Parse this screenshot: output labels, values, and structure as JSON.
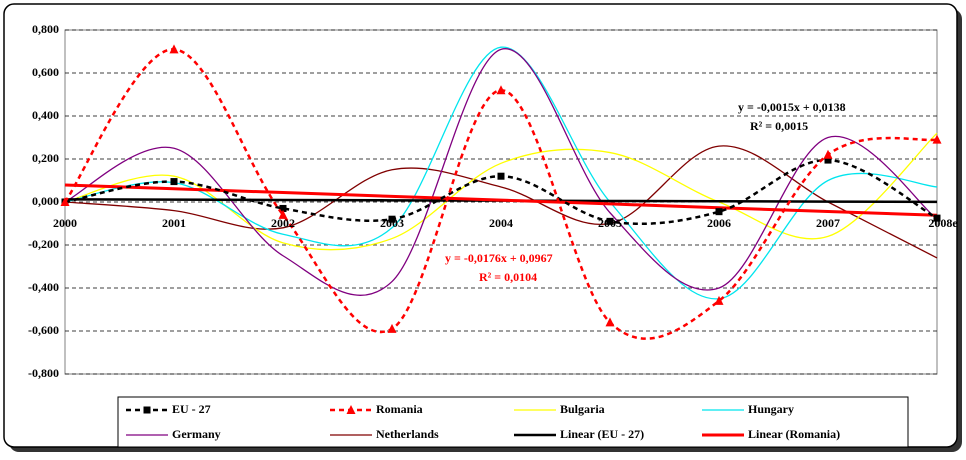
{
  "chart_data": {
    "type": "line",
    "categories": [
      "2000",
      "2001",
      "2002",
      "2003",
      "2004",
      "2005",
      "2006",
      "2007",
      "2008e"
    ],
    "ylim": [
      -0.8,
      0.8
    ],
    "yticks": [
      {
        "value": -0.8,
        "label": "-0,800"
      },
      {
        "value": -0.6,
        "label": "-0,600"
      },
      {
        "value": -0.4,
        "label": "-0,400"
      },
      {
        "value": -0.2,
        "label": "-0,200"
      },
      {
        "value": 0,
        "label": "0,000"
      },
      {
        "value": 0.2,
        "label": "0,200"
      },
      {
        "value": 0.4,
        "label": "0,400"
      },
      {
        "value": 0.6,
        "label": "0,600"
      },
      {
        "value": 0.8,
        "label": "0,800"
      }
    ],
    "grid": true,
    "smooth": true,
    "series": [
      {
        "name": "EU - 27",
        "color": "#000000",
        "dash": true,
        "marker": "square",
        "width": 2.5,
        "values": [
          0,
          0.095,
          -0.03,
          -0.08,
          0.12,
          -0.09,
          -0.045,
          0.195,
          -0.075
        ]
      },
      {
        "name": "Romania",
        "color": "#ff0000",
        "dash": true,
        "marker": "triangle",
        "width": 2.5,
        "values": [
          0,
          0.71,
          -0.06,
          -0.59,
          0.52,
          -0.56,
          -0.46,
          0.22,
          0.29
        ]
      },
      {
        "name": "Bulgaria",
        "color": "#ffff00",
        "width": 1.3,
        "values": [
          0,
          0.12,
          -0.19,
          -0.17,
          0.18,
          0.23,
          0.0,
          -0.16,
          0.32
        ]
      },
      {
        "name": "Hungary",
        "color": "#00e5ee",
        "width": 1.3,
        "values": [
          0,
          0.09,
          -0.15,
          -0.12,
          0.72,
          0.0,
          -0.45,
          0.1,
          0.07
        ]
      },
      {
        "name": "Germany",
        "color": "#800080",
        "width": 1.3,
        "values": [
          0,
          0.25,
          -0.25,
          -0.37,
          0.71,
          -0.05,
          -0.4,
          0.3,
          -0.08
        ]
      },
      {
        "name": "Netherlands",
        "color": "#800000",
        "width": 1.3,
        "values": [
          0,
          -0.04,
          -0.12,
          0.15,
          0.07,
          -0.1,
          0.26,
          0.0,
          -0.26
        ]
      },
      {
        "name": "Linear (EU - 27)",
        "color": "#000000",
        "width": 2.5,
        "straight": true,
        "values": [
          0.0123,
          0.0108,
          0.0093,
          0.0078,
          0.0063,
          0.0048,
          0.0033,
          0.0018,
          0.0003
        ]
      },
      {
        "name": "Linear (Romania)",
        "color": "#ff0000",
        "width": 3,
        "straight": true,
        "values": [
          0.0791,
          0.0615,
          0.0439,
          0.0263,
          0.0087,
          -0.0089,
          -0.0265,
          -0.0441,
          -0.0617
        ]
      }
    ],
    "annotations": [
      {
        "text": "y = -0,0015x + 0,0138",
        "color": "#000000"
      },
      {
        "text": "R² = 0,0015",
        "color": "#000000"
      },
      {
        "text": "y = -0,0176x + 0,0967",
        "color": "#ff0000"
      },
      {
        "text": "R² = 0,0104",
        "color": "#ff0000"
      }
    ]
  }
}
